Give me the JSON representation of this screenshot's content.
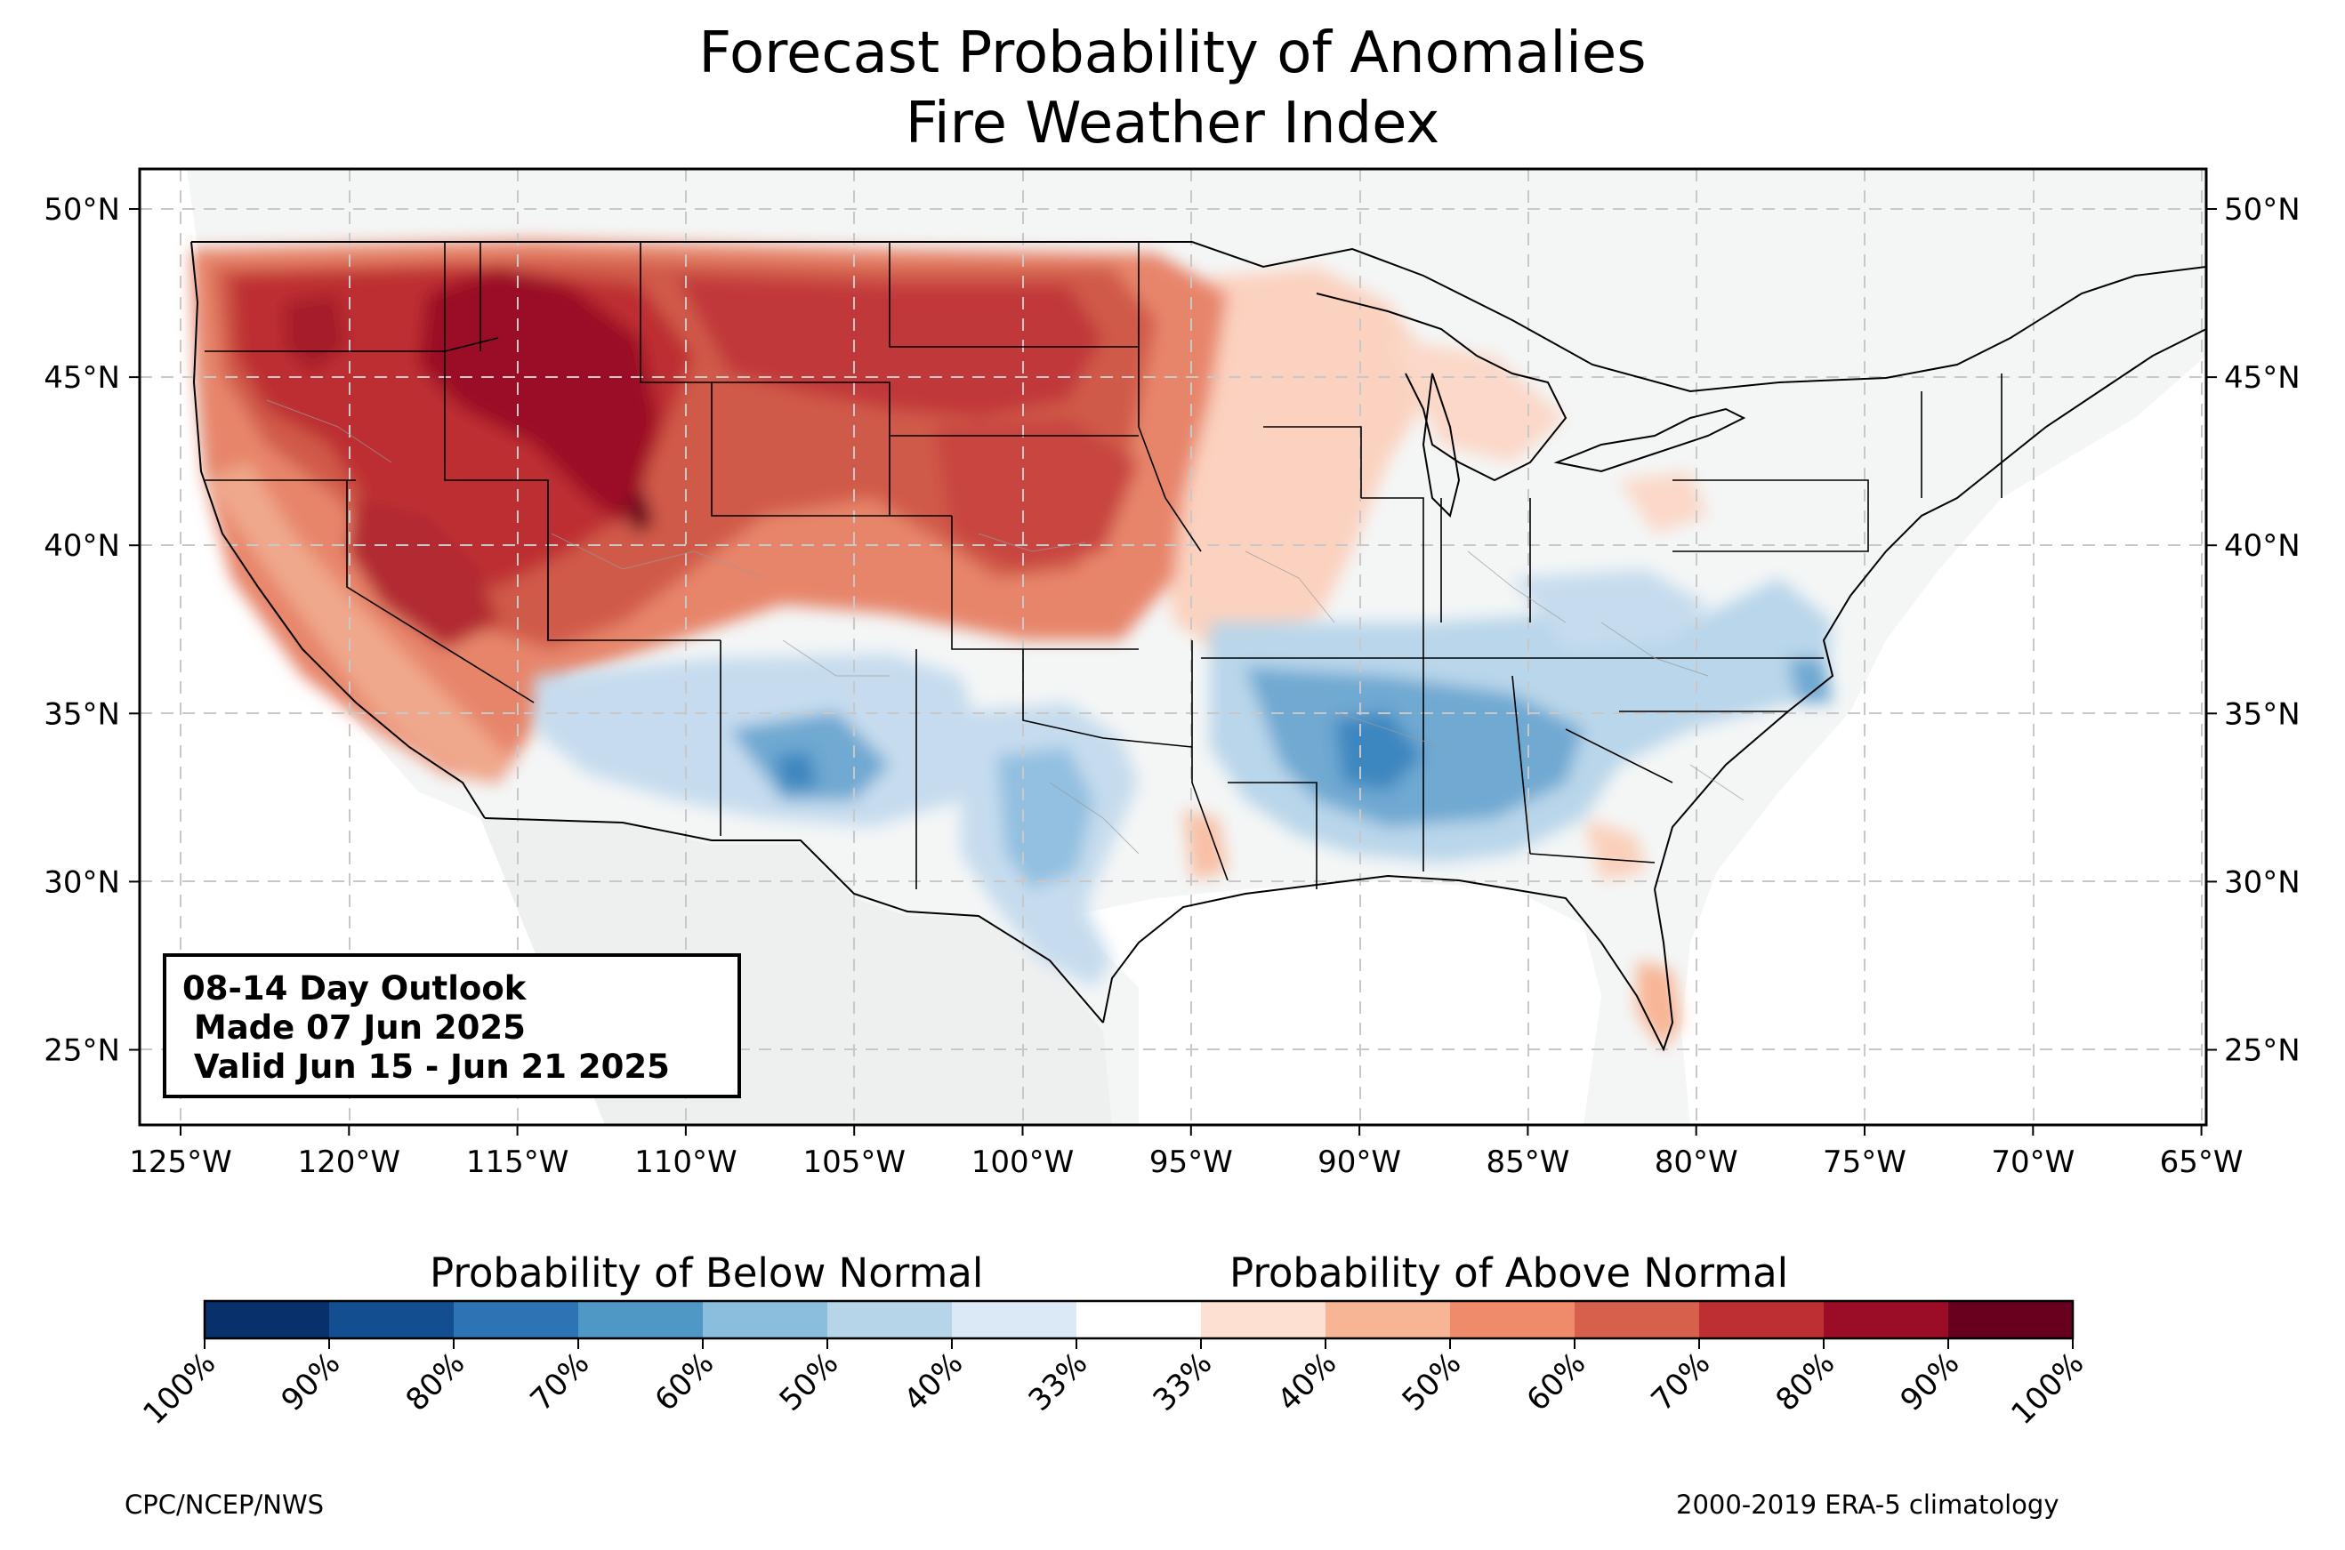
{
  "title": {
    "line1": "Forecast Probability of Anomalies",
    "line2": "Fire Weather Index"
  },
  "map": {
    "lon_labels": [
      "125°W",
      "120°W",
      "115°W",
      "110°W",
      "105°W",
      "100°W",
      "95°W",
      "90°W",
      "85°W",
      "80°W",
      "75°W",
      "70°W",
      "65°W"
    ],
    "lat_labels": [
      "50°N",
      "45°N",
      "40°N",
      "35°N",
      "30°N",
      "25°N"
    ],
    "colors": {
      "land": "#f4f6f6",
      "grid": "#c8c8c8",
      "borders": "#000000",
      "counties": "#9a9a9a"
    },
    "regions": [
      {
        "name": "northwest-high",
        "category": "above",
        "level": "80-90%"
      },
      {
        "name": "northern-plains",
        "category": "above",
        "level": "60-70%"
      },
      {
        "name": "california-great-basin",
        "category": "above",
        "level": "60-80%"
      },
      {
        "name": "upper-midwest",
        "category": "above",
        "level": "33-50%"
      },
      {
        "name": "southwest-new-mexico",
        "category": "below",
        "level": "40-70%"
      },
      {
        "name": "central-texas",
        "category": "below",
        "level": "40-60%"
      },
      {
        "name": "lower-mississippi-southeast",
        "category": "below",
        "level": "40-70%"
      },
      {
        "name": "ohio-valley",
        "category": "below",
        "level": "33-50%"
      },
      {
        "name": "florida",
        "category": "above",
        "level": "33-50%"
      }
    ]
  },
  "outlook_box": {
    "line1": "08-14 Day Outlook",
    "line2": " Made 07 Jun 2025",
    "line3": " Valid Jun 15 - Jun 21 2025"
  },
  "colorbar": {
    "below_label": "Probability of Below Normal",
    "above_label": "Probability of Above Normal",
    "tick_labels": [
      "100%",
      "90%",
      "80%",
      "70%",
      "60%",
      "50%",
      "40%",
      "33%",
      "33%",
      "40%",
      "50%",
      "60%",
      "70%",
      "80%",
      "90%",
      "100%"
    ],
    "colors": [
      "#08306b",
      "#134f90",
      "#2c74b4",
      "#4f98c6",
      "#8bbedc",
      "#b6d5e8",
      "#dbe9f6",
      "#ffffff",
      "#fde0d2",
      "#f8b596",
      "#ef8a6b",
      "#d7604d",
      "#bd2f31",
      "#9b0c26",
      "#67001f"
    ]
  },
  "footer": {
    "left": "CPC/NCEP/NWS",
    "right": "2000-2019 ERA-5 climatology"
  }
}
